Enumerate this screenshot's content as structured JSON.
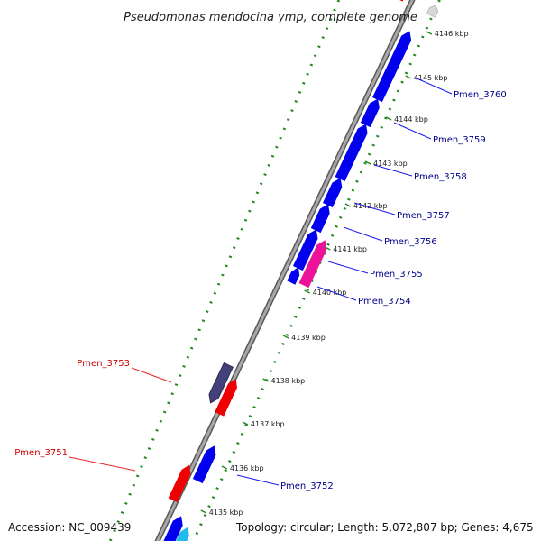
{
  "title": "Pseudomonas mendocina ymp, complete genome",
  "footer": {
    "accession": "Accession: NC_009439",
    "summary": "Topology: circular; Length: 5,072,807 bp; Genes: 4,675"
  },
  "colors": {
    "backbone": "#8c8c8c",
    "gc_ticks": "#1e8a1e",
    "forward_gene": "#0000ee",
    "reverse_gene": "#ee0000",
    "pink_gene": "#ee1199",
    "slate_gene": "#44407a",
    "cyan_gene": "#22bbee",
    "label_blue": "#00008b",
    "label_red": "#cc0000"
  },
  "kbp_ticks": [
    "4146 kbp",
    "4145 kbp",
    "4144 kbp",
    "4143 kbp",
    "4142 kbp",
    "4141 kbp",
    "4140 kbp",
    "4139 kbp",
    "4138 kbp",
    "4137 kbp",
    "4136 kbp",
    "4135 kbp"
  ],
  "genes_right": [
    "Pmen_3760",
    "Pmen_3759",
    "Pmen_3758",
    "Pmen_3757",
    "Pmen_3756",
    "Pmen_3755",
    "Pmen_3754",
    "Pmen_3752"
  ],
  "genes_left": [
    "Pmen_3753",
    "Pmen_3751"
  ]
}
